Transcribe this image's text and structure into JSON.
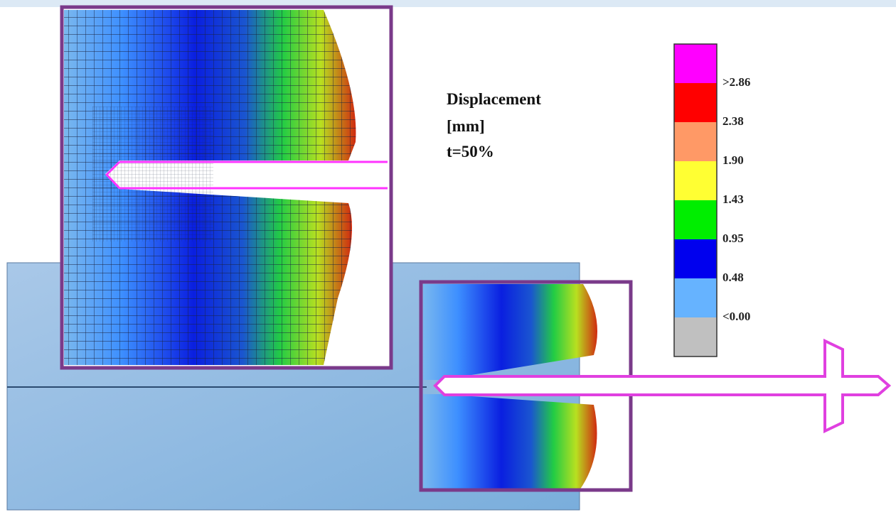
{
  "caption": {
    "lines": [
      "Displacement",
      "[mm]",
      "t=50%"
    ]
  },
  "legend": {
    "labels": [
      ">2.86",
      "2.38",
      "1.90",
      "1.43",
      "0.95",
      "0.48",
      "<0.00"
    ],
    "colors": [
      "#ff00ff",
      "#ff0000",
      "#ff9966",
      "#ffff33",
      "#00ee00",
      "#0000ee",
      "#66b3ff",
      "#c0c0c0"
    ]
  }
}
